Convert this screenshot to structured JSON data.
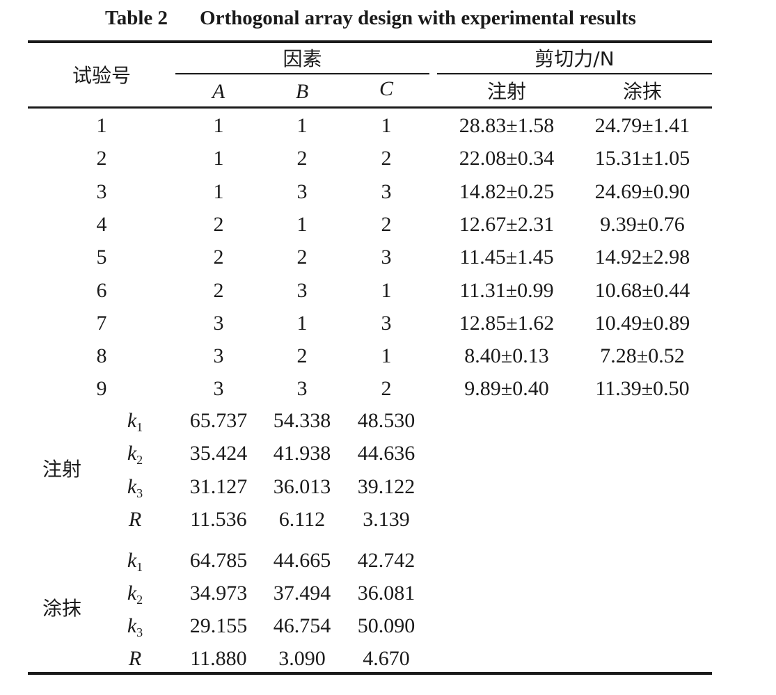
{
  "caption": {
    "label": "Table 2",
    "title": "Orthogonal array design with experimental results"
  },
  "header": {
    "trial_no": "试验号",
    "factors": "因素",
    "factor_cols": [
      "A",
      "B",
      "C"
    ],
    "shear_force": "剪切力/N",
    "method_cols": [
      "注射",
      "涂抹"
    ]
  },
  "rows": [
    {
      "no": "1",
      "a": "1",
      "b": "1",
      "c": "1",
      "inject": "28.83±1.58",
      "smear": "24.79±1.41"
    },
    {
      "no": "2",
      "a": "1",
      "b": "2",
      "c": "2",
      "inject": "22.08±0.34",
      "smear": "15.31±1.05"
    },
    {
      "no": "3",
      "a": "1",
      "b": "3",
      "c": "3",
      "inject": "14.82±0.25",
      "smear": "24.69±0.90"
    },
    {
      "no": "4",
      "a": "2",
      "b": "1",
      "c": "2",
      "inject": "12.67±2.31",
      "smear": "9.39±0.76"
    },
    {
      "no": "5",
      "a": "2",
      "b": "2",
      "c": "3",
      "inject": "11.45±1.45",
      "smear": "14.92±2.98"
    },
    {
      "no": "6",
      "a": "2",
      "b": "3",
      "c": "1",
      "inject": "11.31±0.99",
      "smear": "10.68±0.44"
    },
    {
      "no": "7",
      "a": "3",
      "b": "1",
      "c": "3",
      "inject": "12.85±1.62",
      "smear": "10.49±0.89"
    },
    {
      "no": "8",
      "a": "3",
      "b": "2",
      "c": "1",
      "inject": "8.40±0.13",
      "smear": "7.28±0.52"
    },
    {
      "no": "9",
      "a": "3",
      "b": "3",
      "c": "2",
      "inject": "9.89±0.40",
      "smear": "11.39±0.50"
    }
  ],
  "analysis": [
    {
      "method": "注射",
      "stats": [
        {
          "k": "k",
          "i": "1",
          "a": "65.737",
          "b": "54.338",
          "c": "48.530"
        },
        {
          "k": "k",
          "i": "2",
          "a": "35.424",
          "b": "41.938",
          "c": "44.636"
        },
        {
          "k": "k",
          "i": "3",
          "a": "31.127",
          "b": "36.013",
          "c": "39.122"
        },
        {
          "k": "R",
          "i": "",
          "a": "11.536",
          "b": "6.112",
          "c": "3.139"
        }
      ]
    },
    {
      "method": "涂抹",
      "stats": [
        {
          "k": "k",
          "i": "1",
          "a": "64.785",
          "b": "44.665",
          "c": "42.742"
        },
        {
          "k": "k",
          "i": "2",
          "a": "34.973",
          "b": "37.494",
          "c": "36.081"
        },
        {
          "k": "k",
          "i": "3",
          "a": "29.155",
          "b": "46.754",
          "c": "50.090"
        },
        {
          "k": "R",
          "i": "",
          "a": "11.880",
          "b": "3.090",
          "c": "4.670"
        }
      ]
    }
  ]
}
